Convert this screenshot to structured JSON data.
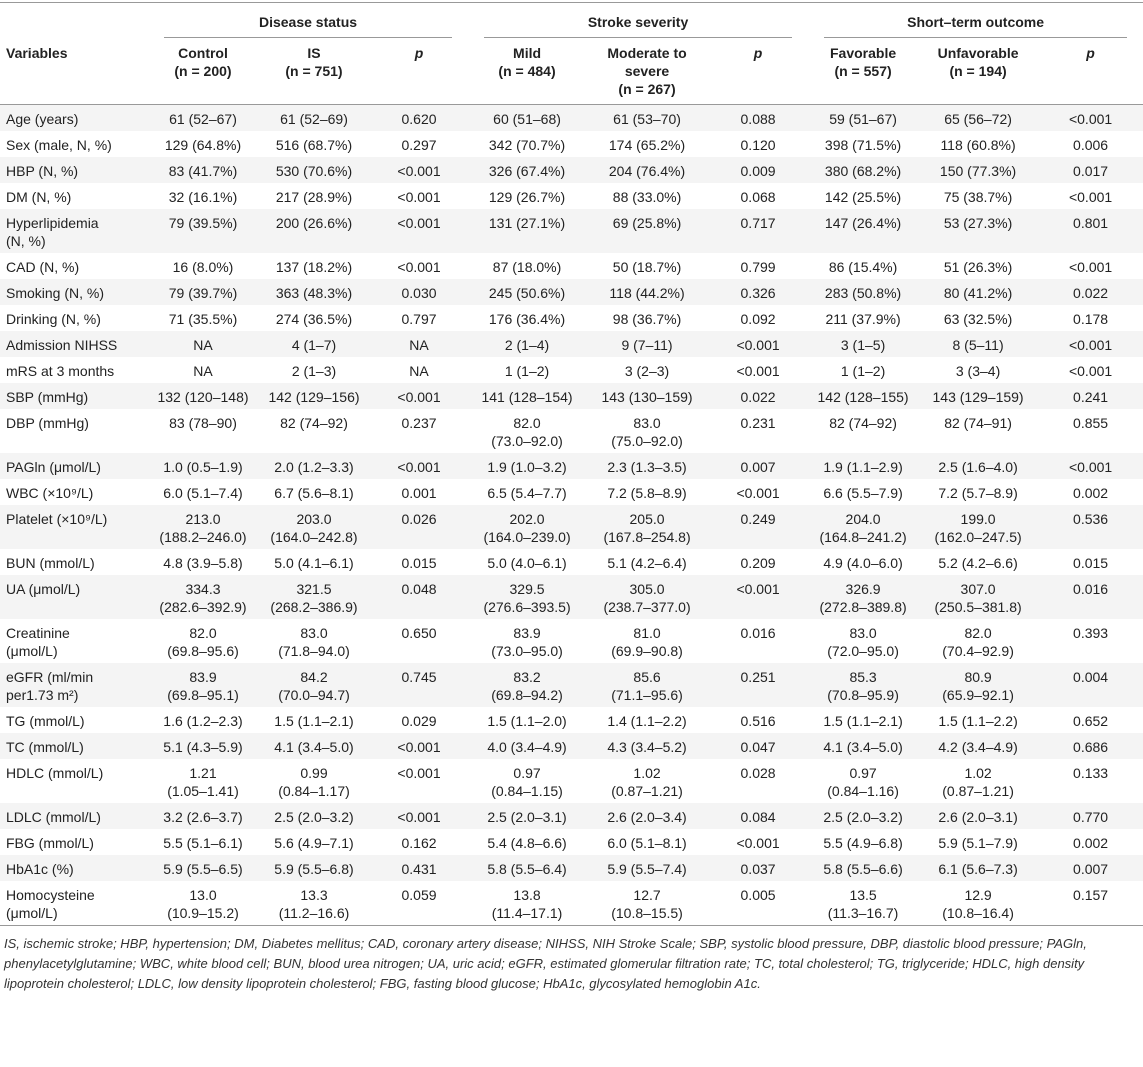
{
  "header": {
    "groups": [
      "Disease status",
      "Stroke severity",
      "Short–term outcome"
    ],
    "columns": [
      [
        "Variables"
      ],
      [
        "Control",
        "(n = 200)"
      ],
      [
        "IS",
        "(n = 751)"
      ],
      [
        "p"
      ],
      [
        "Mild",
        "(n = 484)"
      ],
      [
        "Moderate to",
        "severe",
        "(n = 267)"
      ],
      [
        "p"
      ],
      [
        "Favorable",
        "(n = 557)"
      ],
      [
        "Unfavorable",
        "(n = 194)"
      ],
      [
        "p"
      ]
    ]
  },
  "rows": [
    [
      "Age (years)",
      "61 (52–67)",
      "61 (52–69)",
      "0.620",
      "60 (51–68)",
      "61 (53–70)",
      "0.088",
      "59 (51–67)",
      "65 (56–72)",
      "<0.001"
    ],
    [
      "Sex (male, N, %)",
      "129 (64.8%)",
      "516 (68.7%)",
      "0.297",
      "342 (70.7%)",
      "174 (65.2%)",
      "0.120",
      "398 (71.5%)",
      "118 (60.8%)",
      "0.006"
    ],
    [
      "HBP (N, %)",
      "83 (41.7%)",
      "530 (70.6%)",
      "<0.001",
      "326 (67.4%)",
      "204 (76.4%)",
      "0.009",
      "380 (68.2%)",
      "150 (77.3%)",
      "0.017"
    ],
    [
      "DM (N, %)",
      "32 (16.1%)",
      "217 (28.9%)",
      "<0.001",
      "129 (26.7%)",
      "88 (33.0%)",
      "0.068",
      "142 (25.5%)",
      "75 (38.7%)",
      "<0.001"
    ],
    [
      [
        "Hyperlipidemia",
        "(N, %)"
      ],
      "79 (39.5%)",
      "200 (26.6%)",
      "<0.001",
      "131 (27.1%)",
      "69 (25.8%)",
      "0.717",
      "147 (26.4%)",
      "53 (27.3%)",
      "0.801"
    ],
    [
      "CAD (N, %)",
      "16 (8.0%)",
      "137 (18.2%)",
      "<0.001",
      "87 (18.0%)",
      "50 (18.7%)",
      "0.799",
      "86 (15.4%)",
      "51 (26.3%)",
      "<0.001"
    ],
    [
      "Smoking (N, %)",
      "79 (39.7%)",
      "363 (48.3%)",
      "0.030",
      "245 (50.6%)",
      "118 (44.2%)",
      "0.326",
      "283 (50.8%)",
      "80 (41.2%)",
      "0.022"
    ],
    [
      "Drinking (N, %)",
      "71 (35.5%)",
      "274 (36.5%)",
      "0.797",
      "176 (36.4%)",
      "98 (36.7%)",
      "0.092",
      "211 (37.9%)",
      "63 (32.5%)",
      "0.178"
    ],
    [
      "Admission NIHSS",
      "NA",
      "4 (1–7)",
      "NA",
      "2 (1–4)",
      "9 (7–11)",
      "<0.001",
      "3 (1–5)",
      "8 (5–11)",
      "<0.001"
    ],
    [
      "mRS at 3 months",
      "NA",
      "2 (1–3)",
      "NA",
      "1 (1–2)",
      "3 (2–3)",
      "<0.001",
      "1 (1–2)",
      "3 (3–4)",
      "<0.001"
    ],
    [
      "SBP (mmHg)",
      "132 (120–148)",
      "142 (129–156)",
      "<0.001",
      "141 (128–154)",
      "143 (130–159)",
      "0.022",
      "142 (128–155)",
      "143 (129–159)",
      "0.241"
    ],
    [
      "DBP (mmHg)",
      "83 (78–90)",
      "82 (74–92)",
      "0.237",
      [
        "82.0",
        "(73.0–92.0)"
      ],
      [
        "83.0",
        "(75.0–92.0)"
      ],
      "0.231",
      "82 (74–92)",
      "82 (74–91)",
      "0.855"
    ],
    [
      "PAGln (μmol/L)",
      "1.0 (0.5–1.9)",
      "2.0 (1.2–3.3)",
      "<0.001",
      "1.9 (1.0–3.2)",
      "2.3 (1.3–3.5)",
      "0.007",
      "1.9 (1.1–2.9)",
      "2.5 (1.6–4.0)",
      "<0.001"
    ],
    [
      "WBC (×10⁹/L)",
      "6.0 (5.1–7.4)",
      "6.7 (5.6–8.1)",
      "0.001",
      "6.5 (5.4–7.7)",
      "7.2 (5.8–8.9)",
      "<0.001",
      "6.6 (5.5–7.9)",
      "7.2 (5.7–8.9)",
      "0.002"
    ],
    [
      "Platelet (×10⁹/L)",
      [
        "213.0",
        "(188.2–246.0)"
      ],
      [
        "203.0",
        "(164.0–242.8)"
      ],
      "0.026",
      [
        "202.0",
        "(164.0–239.0)"
      ],
      [
        "205.0",
        "(167.8–254.8)"
      ],
      "0.249",
      [
        "204.0",
        "(164.8–241.2)"
      ],
      [
        "199.0",
        "(162.0–247.5)"
      ],
      "0.536"
    ],
    [
      "BUN (mmol/L)",
      "4.8 (3.9–5.8)",
      "5.0 (4.1–6.1)",
      "0.015",
      "5.0 (4.0–6.1)",
      "5.1 (4.2–6.4)",
      "0.209",
      "4.9 (4.0–6.0)",
      "5.2 (4.2–6.6)",
      "0.015"
    ],
    [
      "UA (μmol/L)",
      [
        "334.3",
        "(282.6–392.9)"
      ],
      [
        "321.5",
        "(268.2–386.9)"
      ],
      "0.048",
      [
        "329.5",
        "(276.6–393.5)"
      ],
      [
        "305.0",
        "(238.7–377.0)"
      ],
      "<0.001",
      [
        "326.9",
        "(272.8–389.8)"
      ],
      [
        "307.0",
        "(250.5–381.8)"
      ],
      "0.016"
    ],
    [
      [
        "Creatinine",
        "(μmol/L)"
      ],
      [
        "82.0",
        "(69.8–95.6)"
      ],
      [
        "83.0",
        "(71.8–94.0)"
      ],
      "0.650",
      [
        "83.9",
        "(73.0–95.0)"
      ],
      [
        "81.0",
        "(69.9–90.8)"
      ],
      "0.016",
      [
        "83.0",
        "(72.0–95.0)"
      ],
      [
        "82.0",
        "(70.4–92.9)"
      ],
      "0.393"
    ],
    [
      [
        "eGFR (ml/min",
        "per1.73 m²)"
      ],
      [
        "83.9",
        "(69.8–95.1)"
      ],
      [
        "84.2",
        "(70.0–94.7)"
      ],
      "0.745",
      [
        "83.2",
        "(69.8–94.2)"
      ],
      [
        "85.6",
        "(71.1–95.6)"
      ],
      "0.251",
      [
        "85.3",
        "(70.8–95.9)"
      ],
      [
        "80.9",
        "(65.9–92.1)"
      ],
      "0.004"
    ],
    [
      "TG (mmol/L)",
      "1.6 (1.2–2.3)",
      "1.5 (1.1–2.1)",
      "0.029",
      "1.5 (1.1–2.0)",
      "1.4 (1.1–2.2)",
      "0.516",
      "1.5 (1.1–2.1)",
      "1.5 (1.1–2.2)",
      "0.652"
    ],
    [
      "TC (mmol/L)",
      "5.1 (4.3–5.9)",
      "4.1 (3.4–5.0)",
      "<0.001",
      "4.0 (3.4–4.9)",
      "4.3 (3.4–5.2)",
      "0.047",
      "4.1 (3.4–5.0)",
      "4.2 (3.4–4.9)",
      "0.686"
    ],
    [
      "HDLC (mmol/L)",
      [
        "1.21",
        "(1.05–1.41)"
      ],
      [
        "0.99",
        "(0.84–1.17)"
      ],
      "<0.001",
      [
        "0.97",
        "(0.84–1.15)"
      ],
      [
        "1.02",
        "(0.87–1.21)"
      ],
      "0.028",
      [
        "0.97",
        "(0.84–1.16)"
      ],
      [
        "1.02",
        "(0.87–1.21)"
      ],
      "0.133"
    ],
    [
      "LDLC (mmol/L)",
      "3.2 (2.6–3.7)",
      "2.5 (2.0–3.2)",
      "<0.001",
      "2.5 (2.0–3.1)",
      "2.6 (2.0–3.4)",
      "0.084",
      "2.5 (2.0–3.2)",
      "2.6 (2.0–3.1)",
      "0.770"
    ],
    [
      "FBG (mmol/L)",
      "5.5 (5.1–6.1)",
      "5.6 (4.9–7.1)",
      "0.162",
      "5.4 (4.8–6.6)",
      "6.0 (5.1–8.1)",
      "<0.001",
      "5.5 (4.9–6.8)",
      "5.9 (5.1–7.9)",
      "0.002"
    ],
    [
      "HbA1c (%)",
      "5.9 (5.5–6.5)",
      "5.9 (5.5–6.8)",
      "0.431",
      "5.8 (5.5–6.4)",
      "5.9 (5.5–7.4)",
      "0.037",
      "5.8 (5.5–6.6)",
      "6.1 (5.6–7.3)",
      "0.007"
    ],
    [
      [
        "Homocysteine",
        "(μmol/L)"
      ],
      [
        "13.0",
        "(10.9–15.2)"
      ],
      [
        "13.3",
        "(11.2–16.6)"
      ],
      "0.059",
      [
        "13.8",
        "(11.4–17.1)"
      ],
      [
        "12.7",
        "(10.8–15.5)"
      ],
      "0.005",
      [
        "13.5",
        "(11.3–16.7)"
      ],
      [
        "12.9",
        "(10.8–16.4)"
      ],
      "0.157"
    ]
  ],
  "footnote": "IS, ischemic stroke; HBP, hypertension; DM, Diabetes mellitus; CAD, coronary artery disease; NIHSS, NIH Stroke Scale; SBP, systolic blood pressure, DBP, diastolic blood pressure; PAGln, phenylacetylglutamine; WBC, white blood cell; BUN, blood urea nitrogen; UA, uric acid; eGFR, estimated glomerular filtration rate; TC, total cholesterol; TG, triglyceride; HDLC, high density lipoprotein cholesterol; LDLC, low density lipoprotein cholesterol; FBG, fasting blood glucose; HbA1c, glycosylated hemoglobin A1c."
}
